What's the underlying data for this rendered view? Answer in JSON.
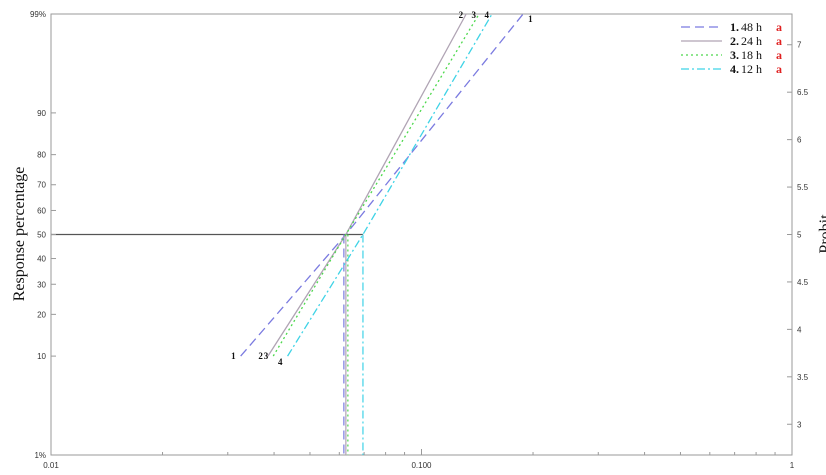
{
  "chart_data": {
    "type": "line",
    "x_scale": "log",
    "y_scale": "probit",
    "xlim": [
      0.01,
      1
    ],
    "ylim_percent": [
      1,
      99
    ],
    "y2lim_probit": [
      2.674,
      7.326
    ],
    "x_ticks": [
      "0.01",
      "0.100",
      "1"
    ],
    "y_ticks": [
      {
        "p": 1,
        "label": "1%"
      },
      {
        "p": 10,
        "label": "10"
      },
      {
        "p": 20,
        "label": "20"
      },
      {
        "p": 30,
        "label": "30"
      },
      {
        "p": 40,
        "label": "40"
      },
      {
        "p": 50,
        "label": "50"
      },
      {
        "p": 60,
        "label": "60"
      },
      {
        "p": 70,
        "label": "70"
      },
      {
        "p": 80,
        "label": "80"
      },
      {
        "p": 90,
        "label": "90"
      },
      {
        "p": 99,
        "label": "99%"
      }
    ],
    "y2_ticks": [
      "3",
      "3.5",
      "4",
      "4.5",
      "5",
      "5.5",
      "6",
      "6.5",
      "7"
    ],
    "ylabel": "Response percentage",
    "y2label": "Probit",
    "grid": false,
    "legend_position": "top-right",
    "series": [
      {
        "name": "48 h",
        "legend_num": "1.",
        "sig": "a",
        "tag": "1",
        "color": "#7b7be0",
        "dash": "9,5",
        "x10": 0.0325,
        "x50": 0.0625,
        "x99": 0.188
      },
      {
        "name": "24 h",
        "legend_num": "2.",
        "sig": "a",
        "tag": "2",
        "color": "#b0a4b4",
        "dash": "",
        "x10": 0.0385,
        "x50": 0.0625,
        "x99": 0.132
      },
      {
        "name": "18 h",
        "legend_num": "3.",
        "sig": "a",
        "tag": "3",
        "color": "#4cd84c",
        "dash": "2,3",
        "x10": 0.0398,
        "x50": 0.0625,
        "x99": 0.143
      },
      {
        "name": "12 h",
        "legend_num": "4.",
        "sig": "a",
        "tag": "4",
        "color": "#3fd3e6",
        "dash": "8,3,2,3",
        "x10": 0.0435,
        "x50": 0.0695,
        "x99": 0.155
      }
    ],
    "sig_color": "#e02020",
    "reference_line_color": "#555555"
  }
}
